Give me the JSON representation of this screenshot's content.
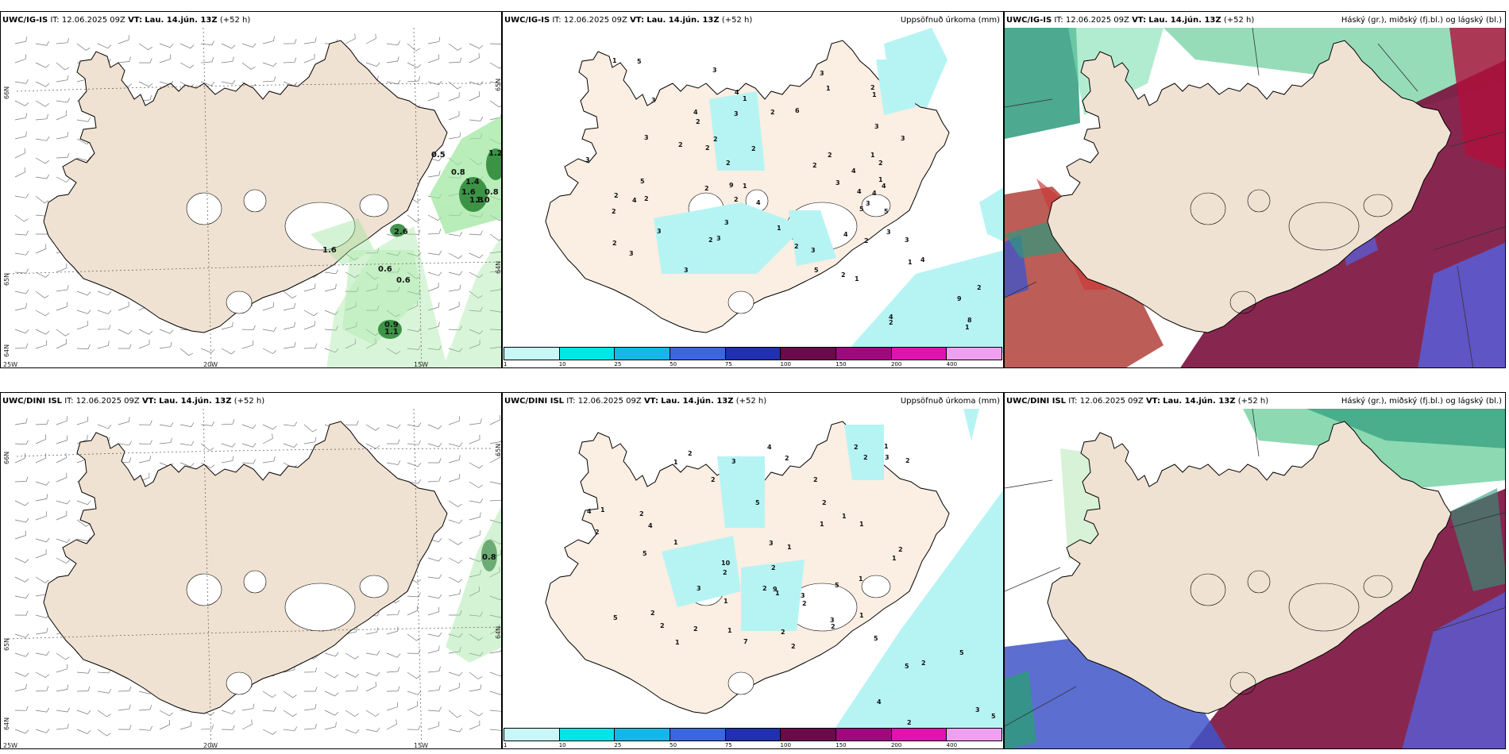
{
  "colors": {
    "land": "#efe2d2",
    "land_light": "#fbeee2",
    "precip": "#b6f4f4",
    "wind_green": "#9be59b",
    "legend": [
      "#c8f7f7",
      "#00e6e6",
      "#14b7e6",
      "#3c66e0",
      "#2030b0",
      "#6a0a4a",
      "#a0087f",
      "#e012b0",
      "#f0a0f0"
    ]
  },
  "panels": [
    {
      "header_model": "UWC/IG-IS",
      "it_label": "IT:",
      "it_value": "12.06.2025 09Z",
      "vt_label": "VT:",
      "vt_value": "Lau. 14.jún. 13Z",
      "lead": "(+52 h)",
      "lat_labels": [
        "66N",
        "65N",
        "64N",
        "65N",
        "64N"
      ],
      "lon_labels": [
        "25W",
        "20W",
        "15W"
      ],
      "values": [
        "0.5",
        "0.8",
        "1.4",
        "1.6",
        "1.3",
        "0.8",
        "1.0",
        "1.2",
        "2.6",
        "1.6",
        "0.6",
        "0.6",
        "0.9",
        "1.1"
      ]
    },
    {
      "header_model": "UWC/IG-IS",
      "it_label": "IT:",
      "it_value": "12.06.2025 09Z",
      "vt_label": "VT:",
      "vt_value": "Lau. 14.jún. 13Z",
      "lead": "(+52 h)",
      "right_title": "Uppsöfnuð úrkoma (mm)",
      "legend_ticks": [
        "1",
        "10",
        "25",
        "50",
        "75",
        "100",
        "150",
        "200",
        "400"
      ],
      "values": [
        "2",
        "2",
        "2",
        "1",
        "2",
        "2",
        "3",
        "5",
        "1",
        "3",
        "6",
        "9",
        "3",
        "2",
        "3",
        "2",
        "4",
        "2",
        "5",
        "3",
        "2",
        "2",
        "1",
        "4",
        "2",
        "1",
        "2",
        "1",
        "1",
        "2",
        "1",
        "2",
        "2",
        "3",
        "3",
        "4",
        "4",
        "3",
        "5",
        "4",
        "3",
        "2",
        "2",
        "3",
        "4",
        "5",
        "4",
        "5",
        "3",
        "4",
        "3",
        "4",
        "1",
        "3",
        "1",
        "3",
        "2",
        "2",
        "2",
        "3",
        "3",
        "2",
        "3",
        "3",
        "4",
        "4",
        "1",
        "9",
        "8",
        "2",
        "1",
        "2"
      ]
    },
    {
      "header_model": "UWC/IG-IS",
      "it_label": "IT:",
      "it_value": "12.06.2025 09Z",
      "vt_label": "VT:",
      "vt_value": "Lau. 14.jún. 13Z",
      "lead": "(+52 h)",
      "right_title": "Háský (gr.), miðský (fj.bl.) og lágský (bl.)"
    },
    {
      "header_model": "UWC/DINI ISL",
      "it_label": "IT:",
      "it_value": "12.06.2025 09Z",
      "vt_label": "VT:",
      "vt_value": "Lau. 14.jún. 13Z",
      "lead": "(+52 h)",
      "lat_labels": [
        "66N",
        "65N",
        "64N",
        "65N",
        "64N"
      ],
      "lon_labels": [
        "25W",
        "20W",
        "15W"
      ],
      "values": [
        "0.8"
      ]
    },
    {
      "header_model": "UWC/DINI ISL",
      "it_label": "IT:",
      "it_value": "12.06.2025 09Z",
      "vt_label": "VT:",
      "vt_value": "Lau. 14.jún. 13Z",
      "lead": "(+52 h)",
      "right_title": "Uppsöfnuð úrkoma (mm)",
      "legend_ticks": [
        "1",
        "10",
        "25",
        "50",
        "75",
        "100",
        "150",
        "200",
        "400"
      ],
      "values": [
        "2",
        "1",
        "2",
        "2",
        "1",
        "2",
        "1",
        "1",
        "2",
        "2",
        "5",
        "4",
        "10",
        "9",
        "1",
        "2",
        "2",
        "2",
        "5",
        "1",
        "3",
        "1",
        "1",
        "2",
        "1",
        "2",
        "5",
        "4",
        "7",
        "2",
        "2",
        "1",
        "2",
        "2",
        "2",
        "1",
        "4",
        "1",
        "2",
        "3",
        "3",
        "3",
        "2",
        "1",
        "2",
        "1",
        "2",
        "1",
        "2",
        "3",
        "3",
        "5",
        "5",
        "5",
        "5",
        "5",
        "3",
        "2",
        "2",
        "4"
      ]
    },
    {
      "header_model": "UWC/DINI ISL",
      "it_label": "IT:",
      "it_value": "12.06.2025 09Z",
      "vt_label": "VT:",
      "vt_value": "Lau. 14.jún. 13Z",
      "lead": "(+52 h)",
      "right_title": "Háský (gr.), miðský (fj.bl.) og lágský (bl.)"
    }
  ]
}
